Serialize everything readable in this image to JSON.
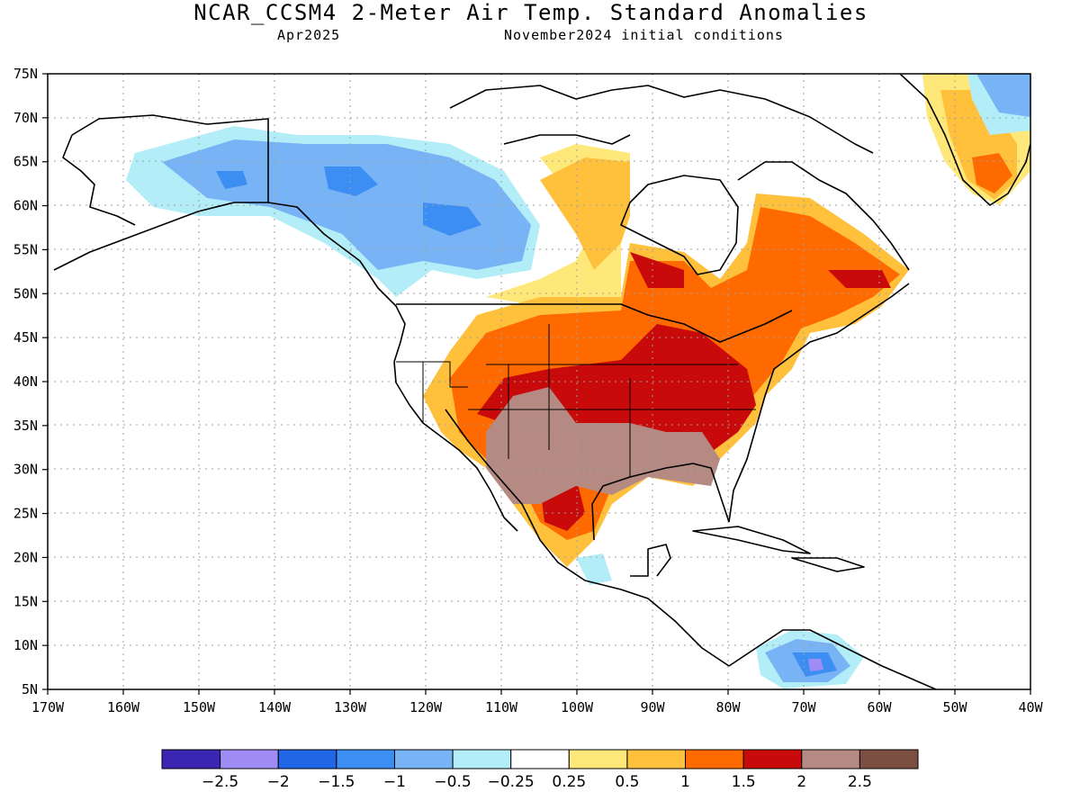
{
  "title": "NCAR_CCSM4 2-Meter Air Temp. Standard Anomalies",
  "valid_month": "Apr2025",
  "initial_conditions": "November2024 initial conditions",
  "latitude_labels": [
    "5N",
    "10N",
    "15N",
    "20N",
    "25N",
    "30N",
    "35N",
    "40N",
    "45N",
    "50N",
    "55N",
    "60N",
    "65N",
    "70N",
    "75N"
  ],
  "longitude_labels": [
    "170W",
    "160W",
    "150W",
    "140W",
    "130W",
    "120W",
    "110W",
    "100W",
    "90W",
    "80W",
    "70W",
    "60W",
    "50W",
    "40W"
  ],
  "colorbar": {
    "colors": [
      "#3a26b3",
      "#a08cf5",
      "#2166e6",
      "#3d8ef2",
      "#78b4f5",
      "#b3eef8",
      "#ffffff",
      "#ffe87a",
      "#ffc03c",
      "#ff6a00",
      "#c80a0a",
      "#b48a82",
      "#7b5042"
    ],
    "labels": [
      "-2.5",
      "-2",
      "-1.5",
      "-1",
      "-0.5",
      "-0.25",
      "0.25",
      "0.5",
      "1",
      "1.5",
      "2",
      "2.5"
    ]
  },
  "colors": {
    "land_outline": "#000000",
    "grid": "#a0a0a0",
    "frame": "#000000"
  }
}
